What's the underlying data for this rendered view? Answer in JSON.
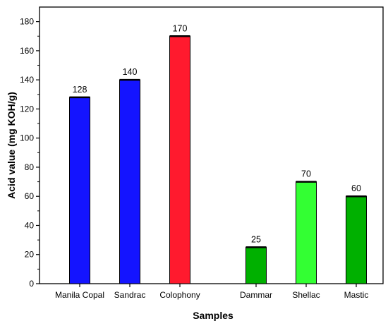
{
  "chart_data": {
    "type": "bar",
    "xlabel": "Samples",
    "ylabel": "Acid value (mg KOH/g)",
    "ylim": [
      0,
      190
    ],
    "yticks": [
      0,
      20,
      40,
      60,
      80,
      100,
      120,
      140,
      160,
      180
    ],
    "grid": false,
    "bars": [
      {
        "category": "Manila Copal",
        "value": 128,
        "label": "128",
        "color": "#1414ff"
      },
      {
        "category": "Sandrac",
        "value": 140,
        "label": "140",
        "color": "#1414ff"
      },
      {
        "category": "Colophony",
        "value": 170,
        "label": "170",
        "color": "#ff1a2e"
      },
      {
        "category": "Dammar",
        "value": 25,
        "label": "25",
        "color": "#00b000"
      },
      {
        "category": "Shellac",
        "value": 70,
        "label": "70",
        "color": "#33ff33"
      },
      {
        "category": "Mastic",
        "value": 60,
        "label": "60",
        "color": "#00b000"
      }
    ]
  }
}
